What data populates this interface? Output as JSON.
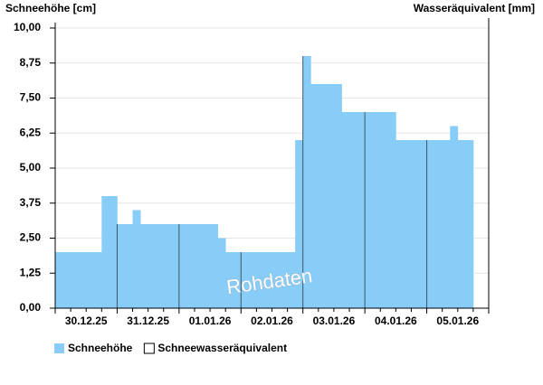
{
  "chart_data": {
    "type": "bar",
    "y_label": "Schneehöhe [cm]",
    "y2_label": "Wasseräquivalent [mm]",
    "watermark": "Rohdaten",
    "categories": [
      null,
      null,
      null,
      null,
      "30.12.25",
      null,
      null,
      null,
      null,
      null,
      null,
      null,
      "31.12.25",
      null,
      null,
      null,
      null,
      null,
      null,
      null,
      "01.01.26",
      null,
      null,
      null,
      null,
      null,
      null,
      null,
      "02.01.26",
      null,
      null,
      null,
      null,
      null,
      null,
      null,
      "03.01.26",
      null,
      null,
      null,
      null,
      null,
      null,
      null,
      "04.01.26",
      null,
      null,
      null,
      null,
      null,
      null,
      null,
      "05.01.26",
      null,
      null,
      null
    ],
    "series": [
      {
        "name": "Schneehöhe",
        "color": "#88cdf8",
        "values": [
          2,
          2,
          2,
          2,
          2,
          2,
          4,
          4,
          3,
          3,
          3.5,
          3,
          3,
          3,
          3,
          3,
          3,
          3,
          3,
          3,
          3,
          2.5,
          2,
          2,
          2,
          2,
          2,
          2,
          2,
          2,
          2,
          6,
          9,
          8,
          8,
          8,
          8,
          7,
          7,
          7,
          7,
          7,
          7,
          7,
          6,
          6,
          6,
          6,
          6,
          6,
          6,
          6.5,
          6,
          6,
          null,
          null
        ]
      },
      {
        "name": "Schneewasseräquivalent",
        "color": "#ffffff",
        "values": [
          null,
          null,
          null,
          null,
          null,
          null,
          null,
          null,
          null,
          null,
          null,
          null,
          null,
          null,
          null,
          null,
          null,
          null,
          null,
          null,
          null,
          null,
          null,
          null,
          null,
          null,
          null,
          null,
          null,
          null,
          null,
          null,
          null,
          null,
          null,
          null,
          null,
          null,
          null,
          null,
          null,
          null,
          null,
          null,
          null,
          null,
          null,
          null,
          null,
          null,
          null,
          null,
          null,
          null,
          null,
          null
        ]
      }
    ],
    "ylim": [
      0,
      10
    ],
    "yticks": [
      {
        "value": 0,
        "label": "0,00"
      },
      {
        "value": 1.25,
        "label": "1,25"
      },
      {
        "value": 2.5,
        "label": "2,50"
      },
      {
        "value": 3.75,
        "label": "3,75"
      },
      {
        "value": 5,
        "label": "5,00"
      },
      {
        "value": 6.25,
        "label": "6,25"
      },
      {
        "value": 7.5,
        "label": "7,50"
      },
      {
        "value": 8.75,
        "label": "8,75"
      },
      {
        "value": 10,
        "label": "10,00"
      }
    ],
    "grid": true
  }
}
